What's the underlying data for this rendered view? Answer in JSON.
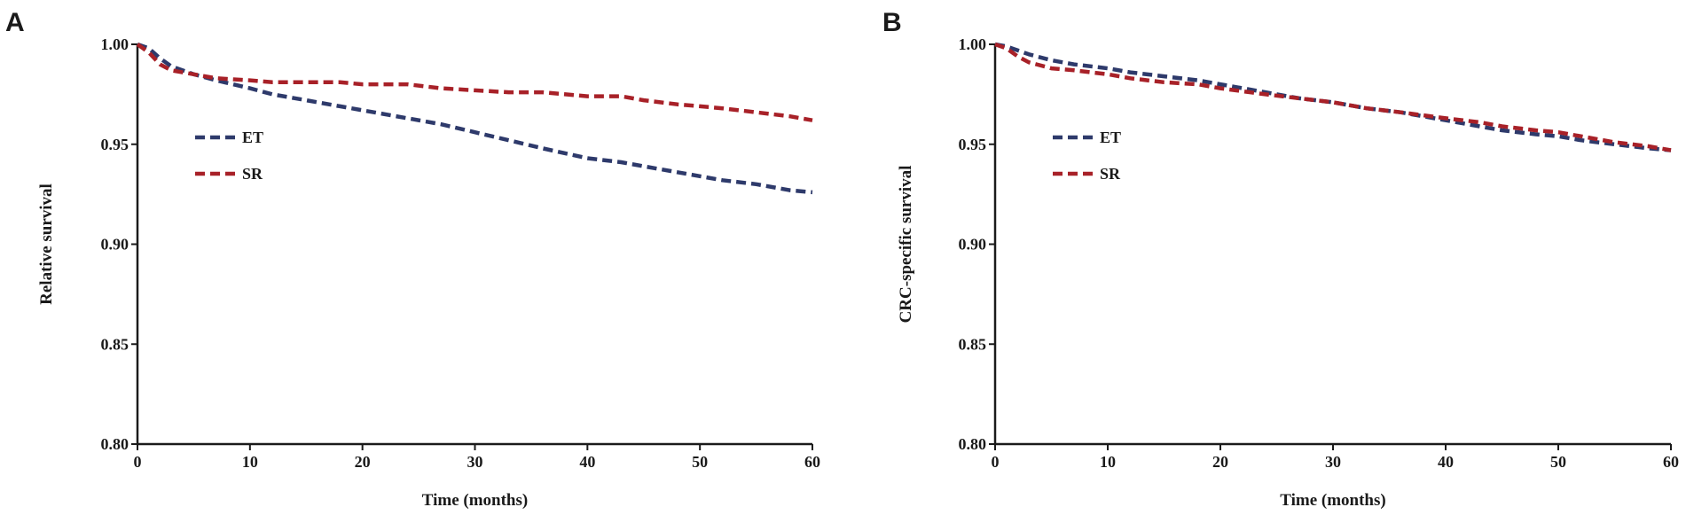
{
  "chart_data": [
    {
      "type": "line",
      "panel_label": "A",
      "xlabel": "Time (months)",
      "ylabel": "Relative survival",
      "xlim": [
        0,
        60
      ],
      "ylim": [
        0.8,
        1.0
      ],
      "xticks": [
        "0",
        "10",
        "20",
        "30",
        "40",
        "50",
        "60"
      ],
      "yticks": [
        "0.80",
        "0.85",
        "0.90",
        "0.95",
        "1.00"
      ],
      "legend_position": "upper-left",
      "series": [
        {
          "name": "ET",
          "color": "#2e3a6b",
          "x": [
            0,
            1,
            2,
            3,
            5,
            7,
            10,
            12,
            15,
            18,
            20,
            24,
            27,
            30,
            33,
            36,
            40,
            43,
            45,
            48,
            50,
            52,
            55,
            58,
            60
          ],
          "y": [
            1.0,
            0.998,
            0.993,
            0.989,
            0.985,
            0.982,
            0.978,
            0.975,
            0.972,
            0.969,
            0.967,
            0.963,
            0.96,
            0.956,
            0.952,
            0.948,
            0.943,
            0.941,
            0.939,
            0.936,
            0.934,
            0.932,
            0.93,
            0.927,
            0.926
          ]
        },
        {
          "name": "SR",
          "color": "#a82128",
          "x": [
            0,
            1,
            2,
            3,
            5,
            7,
            10,
            12,
            15,
            18,
            20,
            24,
            27,
            30,
            33,
            36,
            40,
            43,
            45,
            48,
            50,
            52,
            55,
            58,
            60
          ],
          "y": [
            1.0,
            0.996,
            0.99,
            0.987,
            0.985,
            0.983,
            0.982,
            0.981,
            0.981,
            0.981,
            0.98,
            0.98,
            0.978,
            0.977,
            0.976,
            0.976,
            0.974,
            0.974,
            0.972,
            0.97,
            0.969,
            0.968,
            0.966,
            0.964,
            0.962
          ]
        }
      ]
    },
    {
      "type": "line",
      "panel_label": "B",
      "xlabel": "Time (months)",
      "ylabel": "CRC-specific survival",
      "xlim": [
        0,
        60
      ],
      "ylim": [
        0.8,
        1.0
      ],
      "xticks": [
        "0",
        "10",
        "20",
        "30",
        "40",
        "50",
        "60"
      ],
      "yticks": [
        "0.80",
        "0.85",
        "0.90",
        "0.95",
        "1.00"
      ],
      "legend_position": "upper-left",
      "series": [
        {
          "name": "ET",
          "color": "#2e3a6b",
          "x": [
            0,
            1,
            2,
            3,
            5,
            7,
            10,
            12,
            15,
            18,
            20,
            24,
            27,
            30,
            33,
            36,
            40,
            43,
            45,
            48,
            50,
            52,
            55,
            58,
            60
          ],
          "y": [
            1.0,
            0.999,
            0.997,
            0.995,
            0.992,
            0.99,
            0.988,
            0.986,
            0.984,
            0.982,
            0.98,
            0.976,
            0.973,
            0.971,
            0.968,
            0.966,
            0.962,
            0.959,
            0.957,
            0.955,
            0.954,
            0.952,
            0.95,
            0.948,
            0.947
          ]
        },
        {
          "name": "SR",
          "color": "#a82128",
          "x": [
            0,
            1,
            2,
            3,
            5,
            7,
            10,
            12,
            15,
            18,
            20,
            24,
            27,
            30,
            33,
            36,
            40,
            43,
            45,
            48,
            50,
            52,
            55,
            58,
            60
          ],
          "y": [
            1.0,
            0.998,
            0.994,
            0.991,
            0.988,
            0.987,
            0.985,
            0.983,
            0.981,
            0.98,
            0.978,
            0.975,
            0.973,
            0.971,
            0.968,
            0.966,
            0.963,
            0.961,
            0.959,
            0.957,
            0.956,
            0.954,
            0.951,
            0.949,
            0.947
          ]
        }
      ]
    }
  ]
}
